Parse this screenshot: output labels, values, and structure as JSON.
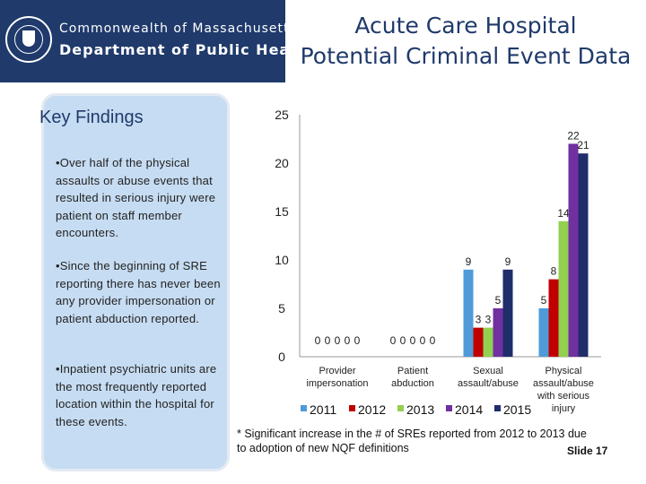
{
  "header": {
    "logo_line1": "Commonwealth of Massachusetts",
    "logo_line2": "Department of Public Health",
    "logo_icon": "state-seal-icon",
    "title_line1": "Acute Care Hospital",
    "title_line2": "Potential Criminal Event Data",
    "band_color": "#1f3a6b"
  },
  "key_findings": {
    "title": "Key Findings",
    "items": [
      "•Over half of the physical assaults or abuse events that resulted in serious injury were patient on staff member encounters.",
      "•Since the beginning of SRE reporting there has never been any provider impersonation or patient abduction reported.",
      "•Inpatient psychiatric units are the most frequently reported location within the hospital for these events."
    ]
  },
  "chart_data": {
    "type": "bar",
    "title": "",
    "xlabel": "",
    "ylabel": "",
    "ylim": [
      0,
      25
    ],
    "y_ticks": [
      0,
      5,
      10,
      15,
      20,
      25
    ],
    "grid": false,
    "legend_position": "bottom",
    "categories": [
      [
        "Provider",
        "impersonation"
      ],
      [
        "Patient",
        "abduction"
      ],
      [
        "Sexual",
        "assault/abuse"
      ],
      [
        "Physical",
        "assault/abuse",
        "with serious",
        "injury"
      ]
    ],
    "series": [
      {
        "name": "2011",
        "color": "#4f9bd9",
        "values": [
          0,
          0,
          9,
          5
        ]
      },
      {
        "name": "2012",
        "color": "#c00000",
        "values": [
          0,
          0,
          3,
          8
        ]
      },
      {
        "name": "2013",
        "color": "#92d050",
        "values": [
          0,
          0,
          3,
          14
        ]
      },
      {
        "name": "2014",
        "color": "#7030a0",
        "values": [
          0,
          0,
          5,
          22
        ]
      },
      {
        "name": "2015",
        "color": "#1f2d6b",
        "values": [
          0,
          0,
          9,
          21
        ]
      }
    ]
  },
  "footnote": "* Significant increase in the # of SREs reported from 2012 to 2013 due to adoption of new NQF definitions",
  "slide_label": "Slide 17"
}
